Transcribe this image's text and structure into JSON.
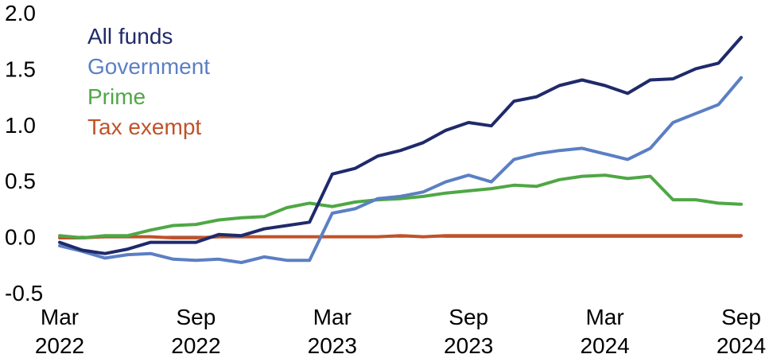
{
  "chart_data": {
    "type": "line",
    "title": "",
    "xlabel": "",
    "ylabel": "",
    "ylim": [
      -0.5,
      2.0
    ],
    "yticks": [
      "2.0",
      "1.5",
      "1.0",
      "0.5",
      "0.0",
      "-0.5"
    ],
    "ytick_values": [
      2.0,
      1.5,
      1.0,
      0.5,
      0.0,
      -0.5
    ],
    "xticks": [
      {
        "month": "Mar",
        "year": "2022",
        "x": "2022-03"
      },
      {
        "month": "Sep",
        "year": "2022",
        "x": "2022-09"
      },
      {
        "month": "Mar",
        "year": "2023",
        "x": "2023-03"
      },
      {
        "month": "Sep",
        "year": "2023",
        "x": "2023-09"
      },
      {
        "month": "Mar",
        "year": "2024",
        "x": "2024-03"
      },
      {
        "month": "Sep",
        "year": "2024",
        "x": "2024-09"
      }
    ],
    "x": [
      "2022-03",
      "2022-04",
      "2022-05",
      "2022-06",
      "2022-07",
      "2022-08",
      "2022-09",
      "2022-10",
      "2022-11",
      "2022-12",
      "2023-01",
      "2023-02",
      "2023-03",
      "2023-04",
      "2023-05",
      "2023-06",
      "2023-07",
      "2023-08",
      "2023-09",
      "2023-10",
      "2023-11",
      "2023-12",
      "2024-01",
      "2024-02",
      "2024-03",
      "2024-04",
      "2024-05",
      "2024-06",
      "2024-07",
      "2024-08",
      "2024-09"
    ],
    "zero_line": true,
    "grid": false,
    "legend_position": "top-left",
    "series": [
      {
        "name": "All funds",
        "color": "#1f2a6b",
        "values": [
          -0.05,
          -0.12,
          -0.15,
          -0.11,
          -0.05,
          -0.05,
          -0.05,
          0.02,
          0.01,
          0.07,
          0.1,
          0.13,
          0.56,
          0.61,
          0.72,
          0.77,
          0.84,
          0.95,
          1.02,
          0.99,
          1.21,
          1.25,
          1.35,
          1.4,
          1.35,
          1.28,
          1.4,
          1.41,
          1.5,
          1.55,
          1.78
        ]
      },
      {
        "name": "Government",
        "color": "#5b7fc4",
        "values": [
          -0.08,
          -0.13,
          -0.19,
          -0.16,
          -0.15,
          -0.2,
          -0.21,
          -0.2,
          -0.23,
          -0.18,
          -0.21,
          -0.21,
          0.21,
          0.25,
          0.34,
          0.36,
          0.4,
          0.49,
          0.55,
          0.49,
          0.69,
          0.74,
          0.77,
          0.79,
          0.74,
          0.69,
          0.79,
          1.02,
          1.1,
          1.18,
          1.42
        ]
      },
      {
        "name": "Prime",
        "color": "#4fa745",
        "values": [
          0.01,
          -0.01,
          0.01,
          0.01,
          0.06,
          0.1,
          0.11,
          0.15,
          0.17,
          0.18,
          0.26,
          0.3,
          0.27,
          0.31,
          0.33,
          0.34,
          0.36,
          0.39,
          0.41,
          0.43,
          0.46,
          0.45,
          0.51,
          0.54,
          0.55,
          0.52,
          0.54,
          0.33,
          0.33,
          0.3,
          0.29
        ]
      },
      {
        "name": "Tax exempt",
        "color": "#c0522a",
        "values": [
          -0.01,
          -0.01,
          0.0,
          0.0,
          0.0,
          -0.01,
          -0.01,
          0.0,
          0.0,
          0.0,
          0.0,
          0.0,
          0.0,
          0.0,
          0.0,
          0.01,
          0.0,
          0.01,
          0.01,
          0.01,
          0.01,
          0.01,
          0.01,
          0.01,
          0.01,
          0.01,
          0.01,
          0.01,
          0.01,
          0.01,
          0.01
        ]
      }
    ]
  }
}
